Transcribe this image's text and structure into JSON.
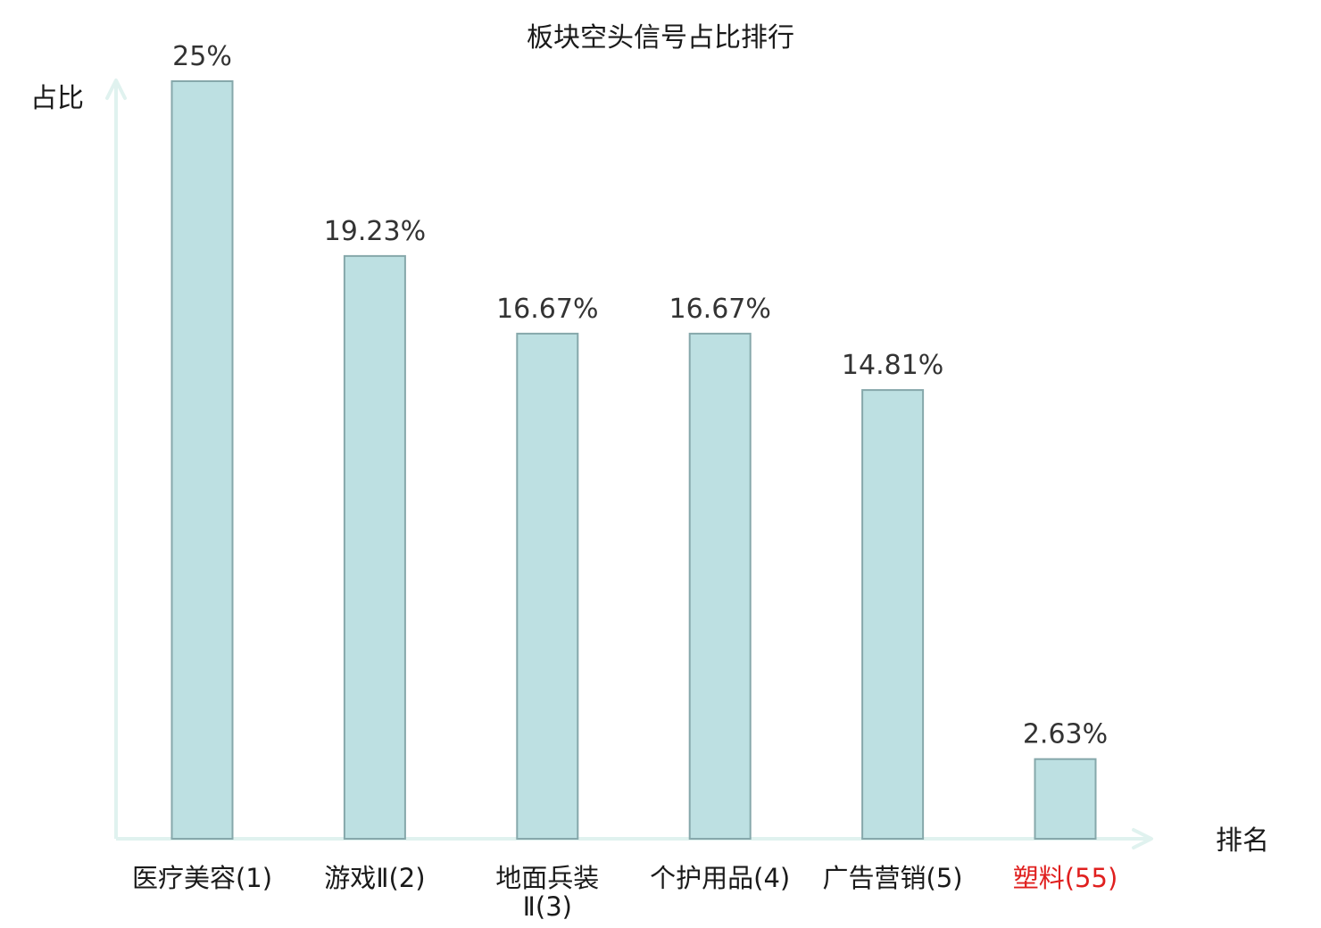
{
  "chart_data": {
    "type": "bar",
    "title": "板块空头信号占比排行",
    "xlabel": "排名",
    "ylabel": "占比",
    "ylim": [
      0,
      25
    ],
    "grid": false,
    "categories": [
      {
        "name": "医疗美容",
        "rank": "(1)"
      },
      {
        "name": "游戏Ⅱ",
        "rank": "(2)"
      },
      {
        "name": "地面兵装Ⅱ",
        "rank": "(3)"
      },
      {
        "name": "个护用品",
        "rank": "(4)"
      },
      {
        "name": "广告营销",
        "rank": "(5)"
      },
      {
        "name": "塑料",
        "rank": "(55)"
      }
    ],
    "values": [
      25,
      19.23,
      16.67,
      16.67,
      14.81,
      2.63
    ],
    "value_labels": [
      "25%",
      "19.23%",
      "16.67%",
      "16.67%",
      "14.81%",
      "2.63%"
    ],
    "highlight_index": 5
  },
  "colors": {
    "bar_fill": "#bde0e2",
    "bar_stroke": "#86a8ab",
    "axis": "#e0f2ef",
    "text": "#1a1a1a",
    "value_text": "#333333",
    "highlight_text": "#e0201f"
  }
}
